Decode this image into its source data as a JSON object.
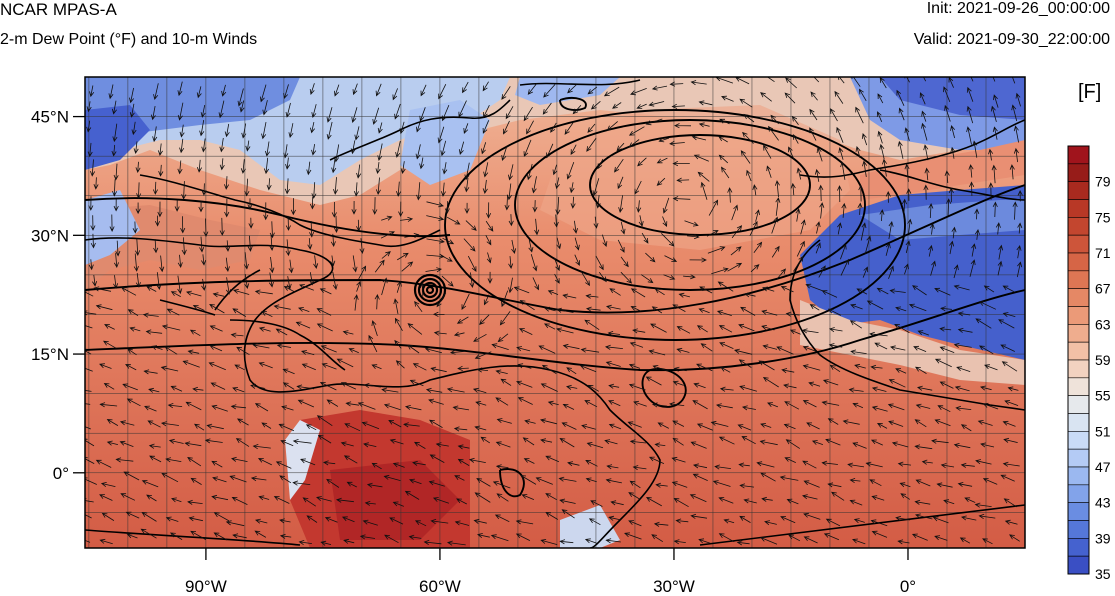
{
  "header": {
    "model": "NCAR MPAS-A",
    "field": "2-m Dew Point (°F) and 10-m Winds",
    "init": "Init: 2021-09-26_00:00:00",
    "valid": "Valid: 2021-09-30_22:00:00"
  },
  "map": {
    "lat_labels": [
      {
        "lat": 45,
        "label": "45°N"
      },
      {
        "lat": 30,
        "label": "30°N"
      },
      {
        "lat": 15,
        "label": "15°N"
      },
      {
        "lat": 0,
        "label": "0°"
      }
    ],
    "lon_labels": [
      {
        "lon": -90,
        "label": "90°W"
      },
      {
        "lon": -60,
        "label": "60°W"
      },
      {
        "lon": -30,
        "label": "30°W"
      },
      {
        "lon": 0,
        "label": "0°"
      }
    ],
    "lon_range": [
      -105.5,
      15
    ],
    "lat_range": [
      -9.5,
      50
    ],
    "grid_spacing_deg": 5,
    "hurricane_center": {
      "lon": -60.5,
      "lat": 23
    }
  },
  "colorbar": {
    "unit": "[F]",
    "min": 35,
    "max": 81,
    "step": 2,
    "tick_labels": [
      "79",
      "75",
      "71",
      "67",
      "63",
      "59",
      "55",
      "51",
      "47",
      "43",
      "39",
      "35"
    ],
    "colors": [
      "#3a4fc4",
      "#4562cf",
      "#5577d9",
      "#6a8de2",
      "#82a3ea",
      "#9bb8f0",
      "#b4cbf5",
      "#c9dbf7",
      "#d9e4f2",
      "#e6e9ec",
      "#efe3da",
      "#f2d2c0",
      "#f2c0a6",
      "#efad8e",
      "#eb9a78",
      "#e58865",
      "#de7654",
      "#d66546",
      "#cd553a",
      "#c3462f",
      "#b83826",
      "#a92a1f",
      "#971c19"
    ],
    "top_color": "#a0141c"
  }
}
